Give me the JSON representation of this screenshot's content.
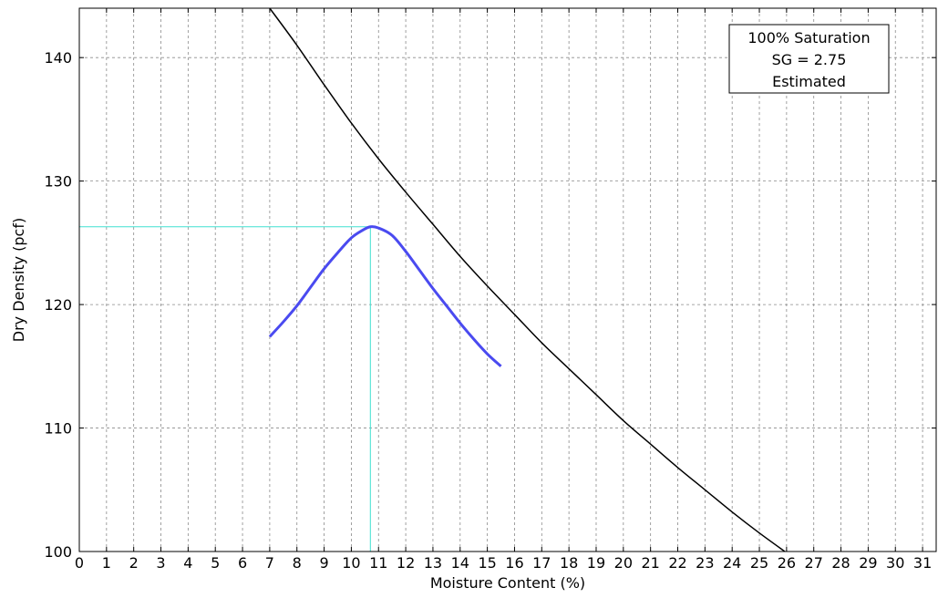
{
  "chart_data": {
    "type": "line",
    "xlabel": "Moisture Content (%)",
    "ylabel": "Dry Density (pcf)",
    "xlim": [
      0,
      31.5
    ],
    "ylim": [
      100,
      144
    ],
    "x_ticks": [
      0,
      1,
      2,
      3,
      4,
      5,
      6,
      7,
      8,
      9,
      10,
      11,
      12,
      13,
      14,
      15,
      16,
      17,
      18,
      19,
      20,
      21,
      22,
      23,
      24,
      25,
      26,
      27,
      28,
      29,
      30,
      31
    ],
    "y_ticks": [
      100,
      110,
      120,
      130,
      140
    ],
    "grid": true,
    "annotation_lines": [
      "100% Saturation",
      "SG = 2.75",
      "Estimated"
    ],
    "annotation_position": "top-right",
    "optimum": {
      "moisture": 10.7,
      "dry_density": 126.3,
      "color": "#40E0D0"
    },
    "series": [
      {
        "style": "zero-air-voids",
        "color": "#000000",
        "x": [
          7.0,
          8.0,
          9.0,
          10.0,
          11.0,
          12.0,
          13.0,
          14.0,
          15.0,
          16.0,
          17.0,
          18.0,
          19.0,
          20.0,
          21.0,
          22.0,
          23.0,
          24.0,
          25.0,
          26.0
        ],
        "y": [
          144.0,
          141.0,
          137.8,
          134.7,
          131.8,
          129.1,
          126.5,
          123.9,
          121.5,
          119.2,
          116.9,
          114.8,
          112.7,
          110.6,
          108.7,
          106.8,
          105.0,
          103.2,
          101.5,
          99.9
        ]
      },
      {
        "style": "compaction-curve",
        "color": "#4a4af0",
        "x": [
          7.0,
          7.5,
          8.0,
          8.5,
          9.0,
          9.5,
          10.0,
          10.4,
          10.7,
          11.0,
          11.5,
          12.0,
          12.5,
          13.0,
          13.5,
          14.0,
          14.5,
          15.0,
          15.5
        ],
        "y": [
          117.4,
          118.6,
          119.9,
          121.4,
          122.9,
          124.2,
          125.4,
          126.0,
          126.3,
          126.2,
          125.6,
          124.3,
          122.8,
          121.3,
          119.9,
          118.5,
          117.2,
          116.0,
          115.0
        ]
      }
    ]
  }
}
